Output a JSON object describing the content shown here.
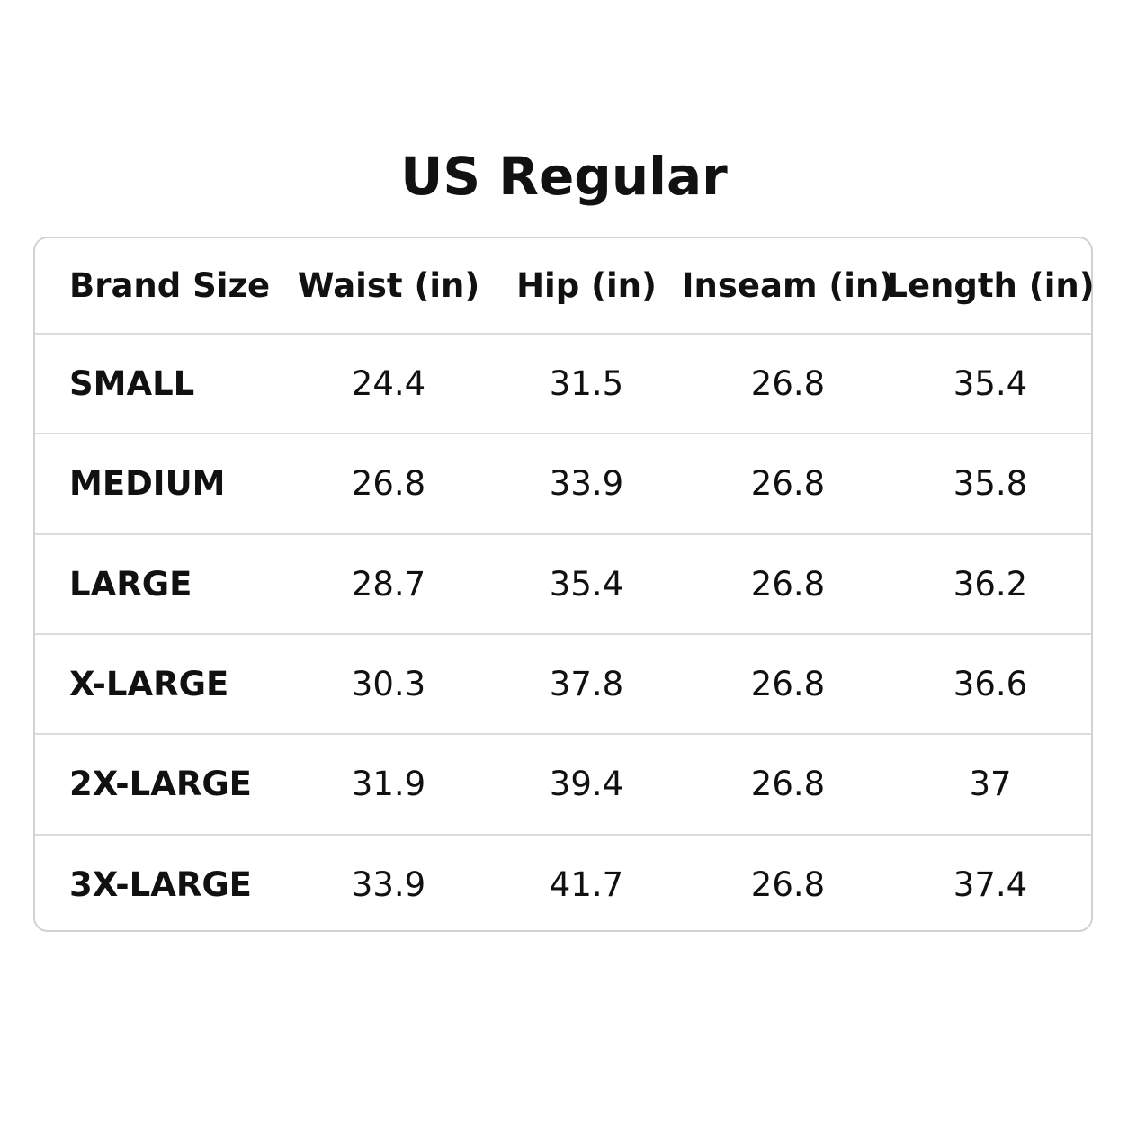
{
  "title": "US Regular",
  "table": {
    "header": [
      "Brand Size",
      "Waist (in)",
      "Hip (in)",
      "Inseam (in)",
      "Length (in)"
    ],
    "rows": [
      [
        "SMALL",
        24.4,
        31.5,
        26.8,
        35.4
      ],
      [
        "MEDIUM",
        26.8,
        33.9,
        26.8,
        35.8
      ],
      [
        "LARGE",
        28.7,
        35.4,
        26.8,
        36.2
      ],
      [
        "X-LARGE",
        30.3,
        37.8,
        26.8,
        36.6
      ],
      [
        "2X-LARGE",
        31.9,
        39.4,
        26.8,
        37
      ],
      [
        "3X-LARGE",
        33.9,
        41.7,
        26.8,
        37.4
      ]
    ]
  }
}
